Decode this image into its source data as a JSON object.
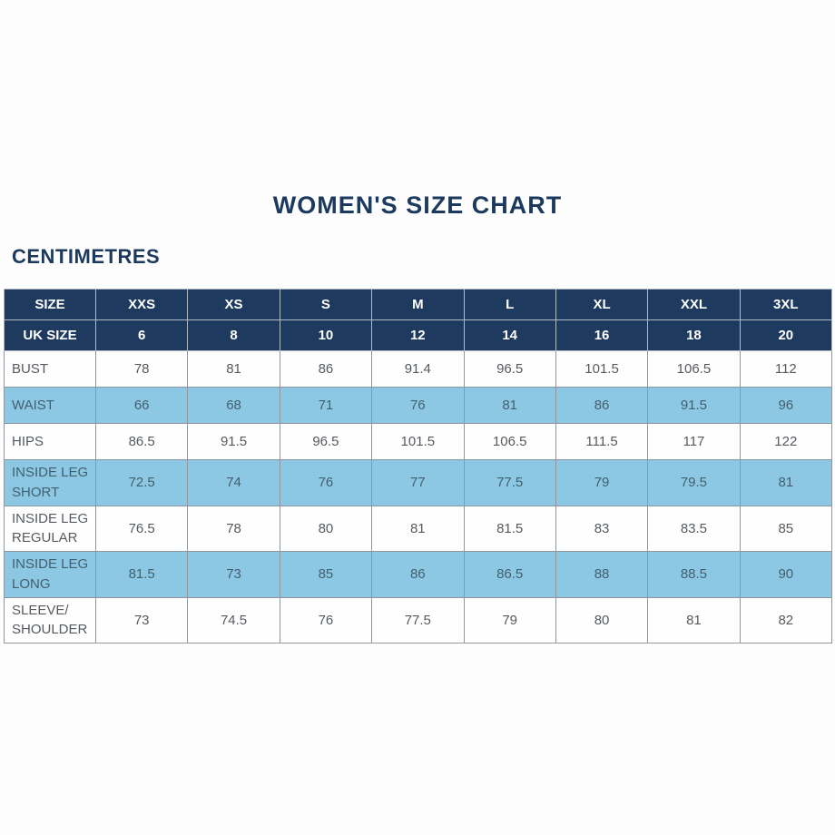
{
  "page": {
    "title": "WOMEN'S SIZE CHART",
    "unit_label": "CENTIMETRES"
  },
  "colors": {
    "header_navy": "#1f3a5f",
    "highlight_row_blue": "#8cc7e4",
    "title_navy": "#1c3a5e",
    "body_text_gray": "#565b60",
    "highlight_text_slate": "#43606f",
    "border_gray": "#8f969c"
  },
  "table": {
    "size_label": "SIZE",
    "sizes": [
      "XXS",
      "XS",
      "S",
      "M",
      "L",
      "XL",
      "XXL",
      "3XL"
    ],
    "uk_size_label": "UK SIZE",
    "uk_sizes": [
      "6",
      "8",
      "10",
      "12",
      "14",
      "16",
      "18",
      "20"
    ],
    "rows": [
      {
        "label": "BUST",
        "highlight": false,
        "values": [
          "78",
          "81",
          "86",
          "91.4",
          "96.5",
          "101.5",
          "106.5",
          "112"
        ]
      },
      {
        "label": "WAIST",
        "highlight": true,
        "values": [
          "66",
          "68",
          "71",
          "76",
          "81",
          "86",
          "91.5",
          "96"
        ]
      },
      {
        "label": "HIPS",
        "highlight": false,
        "values": [
          "86.5",
          "91.5",
          "96.5",
          "101.5",
          "106.5",
          "111.5",
          "117",
          "122"
        ]
      },
      {
        "label": "INSIDE LEG SHORT",
        "highlight": true,
        "values": [
          "72.5",
          "74",
          "76",
          "77",
          "77.5",
          "79",
          "79.5",
          "81"
        ]
      },
      {
        "label": "INSIDE LEG REGULAR",
        "highlight": false,
        "values": [
          "76.5",
          "78",
          "80",
          "81",
          "81.5",
          "83",
          "83.5",
          "85"
        ]
      },
      {
        "label": "INSIDE LEG LONG",
        "highlight": true,
        "values": [
          "81.5",
          "73",
          "85",
          "86",
          "86.5",
          "88",
          "88.5",
          "90"
        ]
      },
      {
        "label": "SLEEVE/ SHOULDER",
        "highlight": false,
        "values": [
          "73",
          "74.5",
          "76",
          "77.5",
          "79",
          "80",
          "81",
          "82"
        ]
      }
    ]
  },
  "chart_data": {
    "type": "table",
    "title": "WOMEN'S SIZE CHART",
    "unit": "CENTIMETRES",
    "columns": [
      "SIZE",
      "XXS",
      "XS",
      "S",
      "M",
      "L",
      "XL",
      "XXL",
      "3XL"
    ],
    "uk_size_row": [
      "UK SIZE",
      6,
      8,
      10,
      12,
      14,
      16,
      18,
      20
    ],
    "rows": [
      [
        "BUST",
        78,
        81,
        86,
        91.4,
        96.5,
        101.5,
        106.5,
        112
      ],
      [
        "WAIST",
        66,
        68,
        71,
        76,
        81,
        86,
        91.5,
        96
      ],
      [
        "HIPS",
        86.5,
        91.5,
        96.5,
        101.5,
        106.5,
        111.5,
        117,
        122
      ],
      [
        "INSIDE LEG SHORT",
        72.5,
        74,
        76,
        77,
        77.5,
        79,
        79.5,
        81
      ],
      [
        "INSIDE LEG REGULAR",
        76.5,
        78,
        80,
        81,
        81.5,
        83,
        83.5,
        85
      ],
      [
        "INSIDE LEG LONG",
        81.5,
        73,
        85,
        86,
        86.5,
        88,
        88.5,
        90
      ],
      [
        "SLEEVE/SHOULDER",
        73,
        74.5,
        76,
        77.5,
        79,
        80,
        81,
        82
      ]
    ],
    "layout": {
      "highlighted_rows": [
        "WAIST",
        "INSIDE LEG SHORT",
        "INSIDE LEG LONG"
      ],
      "grid": true,
      "legend": false
    }
  }
}
